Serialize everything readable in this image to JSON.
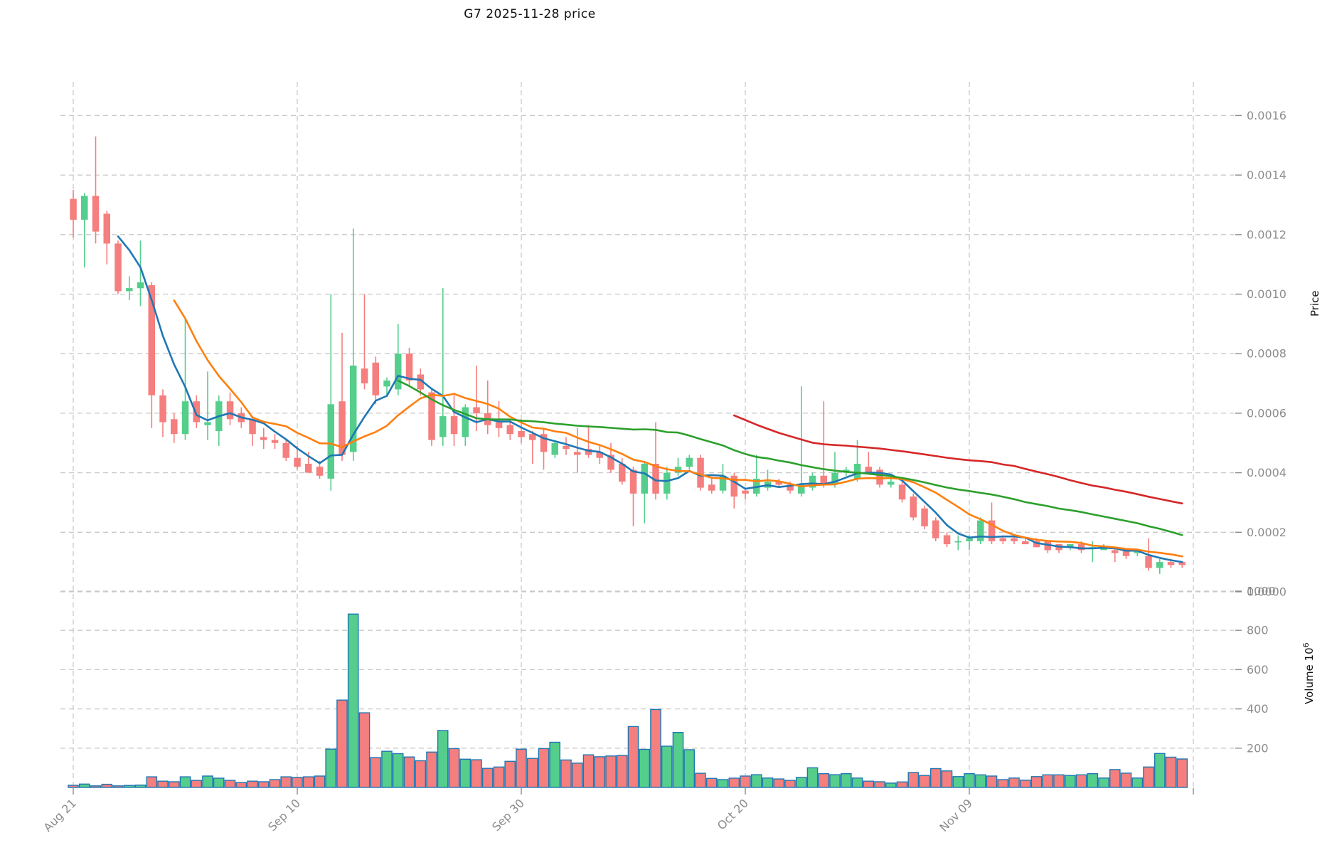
{
  "title": "G7  2025-11-28  price",
  "axes": {
    "price_label": "Price",
    "volume_label": "Volume  10",
    "volume_label_exponent": "6",
    "price_ticks": [
      {
        "label": "0.0000",
        "value": 0.0
      },
      {
        "label": "0.0002",
        "value": 0.0002
      },
      {
        "label": "0.0004",
        "value": 0.0004
      },
      {
        "label": "0.0006",
        "value": 0.0006
      },
      {
        "label": "0.0008",
        "value": 0.0008
      },
      {
        "label": "0.0010",
        "value": 0.001
      },
      {
        "label": "0.0012",
        "value": 0.0012
      },
      {
        "label": "0.0014",
        "value": 0.0014
      },
      {
        "label": "0.0016",
        "value": 0.0016
      }
    ],
    "volume_ticks": [
      {
        "label": "200",
        "value": 200
      },
      {
        "label": "400",
        "value": 400
      },
      {
        "label": "600",
        "value": 600
      },
      {
        "label": "800",
        "value": 800
      },
      {
        "label": "1000",
        "value": 1000
      }
    ],
    "x_ticks": [
      {
        "label": "Aug 21",
        "index": 0
      },
      {
        "label": "Sep 10",
        "index": 20
      },
      {
        "label": "Sep 30",
        "index": 40
      },
      {
        "label": "Oct 20",
        "index": 60
      },
      {
        "label": "Nov 09",
        "index": 80
      },
      {
        "label": "",
        "index": 100
      }
    ]
  },
  "colors": {
    "up": "#55ce8c",
    "down": "#f57e7e",
    "volume_edge": "#1f77b4",
    "ma5": "#1f77b4",
    "ma10": "#ff7f0e",
    "ma30": "#2ca02c",
    "ma60": "#d62728",
    "grid": "#c9c9c9",
    "tick_text": "#8c8c8c",
    "title_text": "#111111"
  },
  "chart_data": {
    "type": "candlestick+volume",
    "title": "G7  2025-11-28  price",
    "start_date": "2025-08-21",
    "end_date": "2025-11-28",
    "n_candles": 100,
    "price_ylim": [
      0,
      0.00172
    ],
    "volume_ylim": [
      0,
      1000
    ],
    "volume_unit": "1e6",
    "ma_windows": [
      5,
      10,
      30,
      60
    ],
    "grid": "dashed",
    "open": [
      0.00132,
      0.00125,
      0.00133,
      0.00127,
      0.00117,
      0.00101,
      0.00102,
      0.00103,
      0.00066,
      0.00058,
      0.00053,
      0.00064,
      0.00056,
      0.00054,
      0.00064,
      0.0006,
      0.00058,
      0.00052,
      0.00051,
      0.0005,
      0.00045,
      0.00043,
      0.00042,
      0.00038,
      0.00064,
      0.00047,
      0.00075,
      0.00077,
      0.00069,
      0.00068,
      0.0008,
      0.00073,
      0.00067,
      0.00052,
      0.00059,
      0.00052,
      0.00062,
      0.0006,
      0.00057,
      0.00056,
      0.00054,
      0.00053,
      0.00053,
      0.00046,
      0.00049,
      0.00047,
      0.00048,
      0.00047,
      0.00046,
      0.00043,
      0.00041,
      0.00033,
      0.00043,
      0.00033,
      0.0004,
      0.00042,
      0.00045,
      0.00036,
      0.00034,
      0.00039,
      0.00034,
      0.00033,
      0.00035,
      0.00037,
      0.00036,
      0.00033,
      0.00035,
      0.00039,
      0.00036,
      0.0004,
      0.00038,
      0.00042,
      0.00041,
      0.00036,
      0.00036,
      0.00032,
      0.00028,
      0.00024,
      0.00019,
      0.00017,
      0.00017,
      0.00017,
      0.00024,
      0.00018,
      0.00018,
      0.00017,
      0.00017,
      0.00017,
      0.00016,
      0.00015,
      0.00016,
      0.00015,
      0.00014,
      0.00014,
      0.00014,
      0.00013,
      0.00012,
      8e-05,
      0.0001,
      0.0001
    ],
    "high": [
      0.00135,
      0.00134,
      0.00153,
      0.00128,
      0.00118,
      0.00106,
      0.00118,
      0.00104,
      0.00068,
      0.0006,
      0.00092,
      0.00066,
      0.00074,
      0.00066,
      0.00067,
      0.00062,
      0.00059,
      0.00055,
      0.00053,
      0.00051,
      0.00049,
      0.00047,
      0.00044,
      0.001,
      0.00087,
      0.00122,
      0.001,
      0.00079,
      0.00072,
      0.0009,
      0.00082,
      0.00075,
      0.00068,
      0.00102,
      0.00066,
      0.00063,
      0.00076,
      0.00071,
      0.00064,
      0.00058,
      0.00058,
      0.00054,
      0.00055,
      0.00051,
      0.00052,
      0.00055,
      0.00056,
      0.00049,
      0.0005,
      0.00045,
      0.00042,
      0.00044,
      0.00057,
      0.00042,
      0.00045,
      0.00046,
      0.00046,
      0.00038,
      0.00043,
      0.0004,
      0.00035,
      0.00046,
      0.00041,
      0.00038,
      0.00037,
      0.00069,
      0.0004,
      0.00064,
      0.00047,
      0.00042,
      0.00051,
      0.00047,
      0.00042,
      0.00038,
      0.00037,
      0.00033,
      0.00029,
      0.00025,
      0.0002,
      0.00019,
      0.00019,
      0.00025,
      0.0003,
      0.00019,
      0.00019,
      0.00018,
      0.00018,
      0.00017,
      0.00016,
      0.00016,
      0.00017,
      0.00017,
      0.00016,
      0.00015,
      0.00014,
      0.00014,
      0.00018,
      0.00011,
      0.00011,
      0.0001
    ],
    "low": [
      0.00119,
      0.00109,
      0.00117,
      0.0011,
      0.001,
      0.00098,
      0.00096,
      0.00055,
      0.00052,
      0.0005,
      0.00051,
      0.00055,
      0.00051,
      0.00049,
      0.00056,
      0.00055,
      0.00049,
      0.00048,
      0.00048,
      0.00044,
      0.00041,
      0.0004,
      0.00038,
      0.00034,
      0.00044,
      0.00044,
      0.00068,
      0.00063,
      0.00066,
      0.00066,
      0.00069,
      0.00066,
      0.00049,
      0.00049,
      0.00049,
      0.00049,
      0.00054,
      0.00053,
      0.00052,
      0.00051,
      0.0005,
      0.00043,
      0.00041,
      0.00045,
      0.00046,
      0.0004,
      0.00045,
      0.00043,
      0.0004,
      0.00036,
      0.00022,
      0.00023,
      0.00031,
      0.00031,
      0.00039,
      0.00041,
      0.00034,
      0.00033,
      0.00033,
      0.00028,
      0.00031,
      0.00032,
      0.00034,
      0.00035,
      0.00033,
      0.00032,
      0.00034,
      0.00035,
      0.00035,
      0.00039,
      0.00037,
      0.0004,
      0.00035,
      0.00035,
      0.0003,
      0.00024,
      0.00021,
      0.00017,
      0.00015,
      0.00014,
      0.00014,
      0.00016,
      0.00016,
      0.00016,
      0.00016,
      0.00016,
      0.00015,
      0.00013,
      0.00013,
      0.00014,
      0.00013,
      0.0001,
      0.00014,
      0.0001,
      0.00011,
      0.00012,
      7e-05,
      6e-05,
      8e-05,
      8e-05
    ],
    "close": [
      0.00125,
      0.00133,
      0.00121,
      0.00117,
      0.00101,
      0.00102,
      0.00104,
      0.00066,
      0.00057,
      0.00053,
      0.00064,
      0.00057,
      0.00057,
      0.00064,
      0.00058,
      0.00057,
      0.00053,
      0.00051,
      0.0005,
      0.00045,
      0.00042,
      0.0004,
      0.00039,
      0.00063,
      0.00046,
      0.00076,
      0.0007,
      0.00066,
      0.00071,
      0.0008,
      0.00071,
      0.00068,
      0.00051,
      0.00059,
      0.00053,
      0.00062,
      0.0006,
      0.00056,
      0.00055,
      0.00053,
      0.00052,
      0.00051,
      0.00047,
      0.0005,
      0.00048,
      0.00046,
      0.00046,
      0.00045,
      0.00041,
      0.00037,
      0.00033,
      0.00043,
      0.00033,
      0.0004,
      0.00042,
      0.00045,
      0.00035,
      0.00034,
      0.00039,
      0.00032,
      0.00033,
      0.00038,
      0.00037,
      0.00036,
      0.00034,
      0.00036,
      0.00039,
      0.00036,
      0.0004,
      0.00041,
      0.00043,
      0.0004,
      0.00036,
      0.00037,
      0.00031,
      0.00025,
      0.00022,
      0.00018,
      0.00016,
      0.00017,
      0.00018,
      0.00024,
      0.00017,
      0.00017,
      0.00017,
      0.00016,
      0.00015,
      0.00014,
      0.00014,
      0.00016,
      0.00014,
      0.00015,
      0.00015,
      0.00013,
      0.00012,
      0.00014,
      8e-05,
      0.0001,
      9e-05,
      9e-05
    ],
    "volume": [
      11,
      17,
      8,
      16,
      8,
      10,
      12,
      54,
      32,
      29,
      54,
      36,
      58,
      47,
      36,
      25,
      32,
      29,
      40,
      54,
      51,
      54,
      58,
      195,
      445,
      883,
      380,
      152,
      184,
      172,
      155,
      136,
      180,
      290,
      198,
      144,
      141,
      97,
      104,
      133,
      195,
      148,
      198,
      230,
      140,
      124,
      166,
      156,
      160,
      163,
      310,
      194,
      397,
      210,
      280,
      192,
      72,
      46,
      40,
      47,
      58,
      65,
      48,
      43,
      36,
      51,
      100,
      70,
      65,
      70,
      48,
      32,
      29,
      22,
      28,
      76,
      61,
      96,
      84,
      55,
      70,
      64,
      58,
      40,
      48,
      37,
      55,
      64,
      64,
      61,
      64,
      70,
      48,
      91,
      73,
      48,
      104,
      173,
      154,
      145
    ]
  }
}
